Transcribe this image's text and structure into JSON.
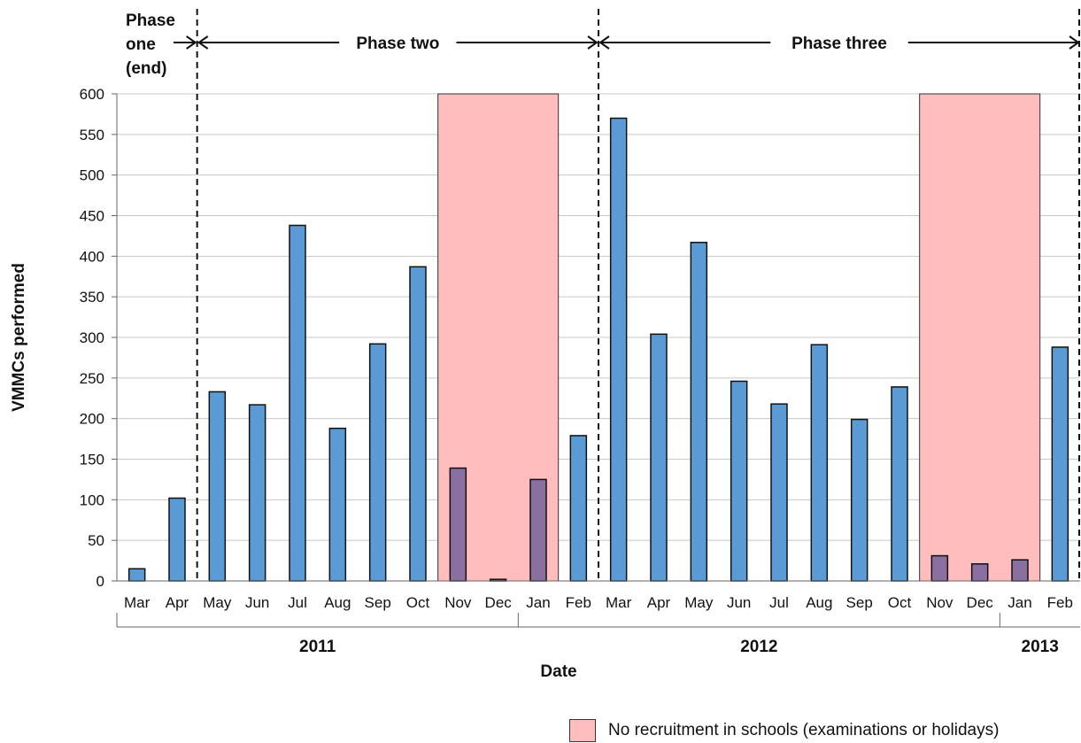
{
  "chart_data": {
    "type": "bar",
    "ylabel": "VMMCs performed",
    "xlabel": "Date",
    "ylim": [
      0,
      600
    ],
    "yticks": [
      0,
      50,
      100,
      150,
      200,
      250,
      300,
      350,
      400,
      450,
      500,
      550,
      600
    ],
    "grid": true,
    "categories": [
      "Mar",
      "Apr",
      "May",
      "Jun",
      "Jul",
      "Aug",
      "Sep",
      "Oct",
      "Nov",
      "Dec",
      "Jan",
      "Feb",
      "Mar",
      "Apr",
      "May",
      "Jun",
      "Jul",
      "Aug",
      "Sep",
      "Oct",
      "Nov",
      "Dec",
      "Jan",
      "Feb"
    ],
    "values": [
      15,
      102,
      233,
      217,
      438,
      188,
      292,
      387,
      139,
      2,
      125,
      179,
      570,
      304,
      417,
      246,
      218,
      291,
      199,
      239,
      31,
      21,
      26,
      288
    ],
    "years": [
      {
        "label": "2011",
        "from": 0,
        "to": 9
      },
      {
        "label": "2012",
        "from": 10,
        "to": 21
      },
      {
        "label": "2013",
        "from": 22,
        "to": 23
      }
    ],
    "phases": [
      {
        "label": "Phase\none\n(end)",
        "from": 0,
        "to": 1
      },
      {
        "label": "Phase two",
        "from": 2,
        "to": 11
      },
      {
        "label": "Phase three",
        "from": 12,
        "to": 23
      }
    ],
    "highlight_ranges": [
      {
        "from": 8,
        "to": 10
      },
      {
        "from": 20,
        "to": 22
      }
    ],
    "legend": {
      "label": "No recruitment in schools (examinations or holidays)",
      "placement": "bottom-right"
    },
    "colors": {
      "bar": "#5b9bd5",
      "bar_highlighted": "#8a70a0",
      "highlight": "#ffbdbd",
      "grid": "#c8c8c8"
    }
  }
}
